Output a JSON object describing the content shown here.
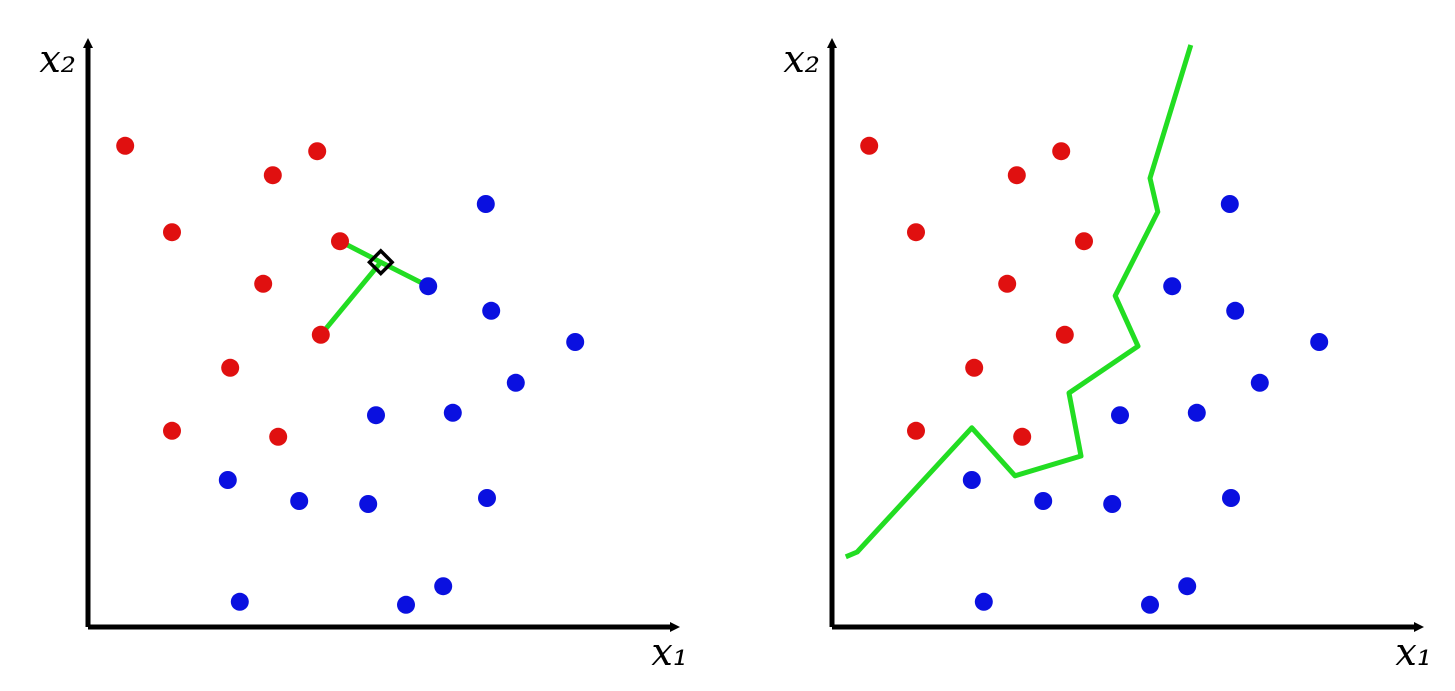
{
  "chart_data": [
    {
      "type": "scatter",
      "xlabel": "x₁",
      "ylabel": "x₂",
      "xlim": [
        0,
        100
      ],
      "ylim": [
        0,
        100
      ],
      "series": [
        {
          "type": "line",
          "color": "#22dd22",
          "x": [
            42.0,
            48.8,
            56.7
          ],
          "values": [
            64.3,
            60.8,
            56.8
          ]
        },
        {
          "type": "line",
          "color": "#22dd22",
          "x": [
            48.8,
            38.8
          ],
          "values": [
            60.8,
            48.7
          ]
        },
        {
          "type": "scatter",
          "color": "#e01010",
          "x": [
            6.2,
            38.2,
            30.8,
            14.0,
            42.0,
            29.2,
            38.8,
            23.7,
            14.0,
            31.7
          ],
          "values": [
            80.2,
            79.3,
            75.3,
            65.8,
            64.3,
            57.2,
            48.7,
            43.2,
            32.7,
            31.7
          ]
        },
        {
          "type": "scatter",
          "color": "#0a10e0",
          "x": [
            66.3,
            56.7,
            67.2,
            81.2,
            71.3,
            48.0,
            60.8,
            23.3,
            35.2,
            46.7,
            66.5,
            25.3,
            53.0,
            59.2
          ],
          "values": [
            70.5,
            56.8,
            52.7,
            47.5,
            40.7,
            35.3,
            35.7,
            24.5,
            21.0,
            20.5,
            21.5,
            4.2,
            3.7,
            6.8
          ]
        },
        {
          "type": "scatter",
          "marker": "diamond",
          "color": "#000000",
          "x": [
            48.8
          ],
          "values": [
            60.8
          ]
        }
      ]
    },
    {
      "type": "scatter",
      "xlabel": "x₁",
      "ylabel": "x₂",
      "xlim": [
        0,
        100
      ],
      "ylim": [
        0,
        100
      ],
      "series": [
        {
          "type": "line",
          "color": "#22dd22",
          "x": [
            2.3,
            4.2,
            23.3,
            30.5,
            41.5,
            39.5,
            51.0,
            47.2,
            54.3,
            53.0,
            59.8
          ],
          "values": [
            11.7,
            12.5,
            33.2,
            25.2,
            28.5,
            39.0,
            46.8,
            55.2,
            69.2,
            74.8,
            97.0
          ]
        },
        {
          "type": "scatter",
          "color": "#e01010",
          "x": [
            6.2,
            38.2,
            30.8,
            14.0,
            42.0,
            29.2,
            38.8,
            23.7,
            14.0,
            31.7
          ],
          "values": [
            80.2,
            79.3,
            75.3,
            65.8,
            64.3,
            57.2,
            48.7,
            43.2,
            32.7,
            31.7
          ]
        },
        {
          "type": "scatter",
          "color": "#0a10e0",
          "x": [
            66.3,
            56.7,
            67.2,
            81.2,
            71.3,
            48.0,
            60.8,
            23.3,
            35.2,
            46.7,
            66.5,
            25.3,
            53.0,
            59.2
          ],
          "values": [
            70.5,
            56.8,
            52.7,
            47.5,
            40.7,
            35.3,
            35.7,
            24.5,
            21.0,
            20.5,
            21.5,
            4.2,
            3.7,
            6.8
          ]
        }
      ]
    }
  ]
}
